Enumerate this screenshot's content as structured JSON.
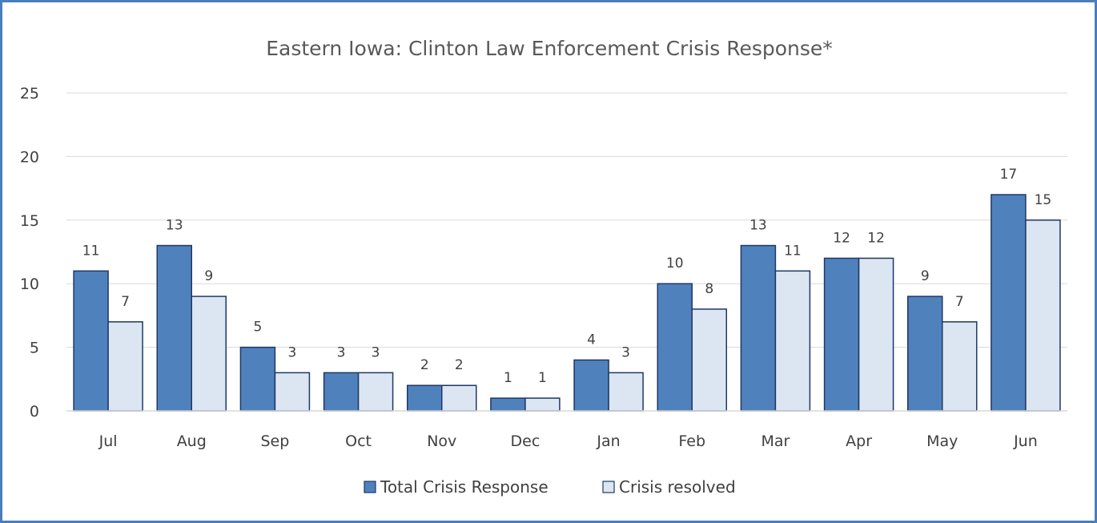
{
  "chart_data": {
    "type": "bar",
    "title": "Eastern Iowa: Clinton Law Enforcement Crisis Response*",
    "xlabel": "",
    "ylabel": "",
    "categories": [
      "Jul",
      "Aug",
      "Sep",
      "Oct",
      "Nov",
      "Dec",
      "Jan",
      "Feb",
      "Mar",
      "Apr",
      "May",
      "Jun"
    ],
    "series": [
      {
        "name": "Total Crisis Response",
        "color": "#4f81bd",
        "values": [
          11,
          13,
          5,
          3,
          2,
          1,
          4,
          10,
          13,
          12,
          9,
          17
        ]
      },
      {
        "name": "Crisis resolved",
        "color": "#dce6f2",
        "values": [
          7,
          9,
          3,
          3,
          2,
          1,
          3,
          8,
          11,
          12,
          7,
          15
        ]
      }
    ],
    "ylim": [
      0,
      25
    ],
    "yticks": [
      0,
      5,
      10,
      15,
      20,
      25
    ],
    "grid": true,
    "data_labels": true,
    "legend_position": "bottom"
  },
  "frame_color": "#4a7ebb",
  "bar_border_color": "#1f3864",
  "gridline_color": "#d9d9d9"
}
